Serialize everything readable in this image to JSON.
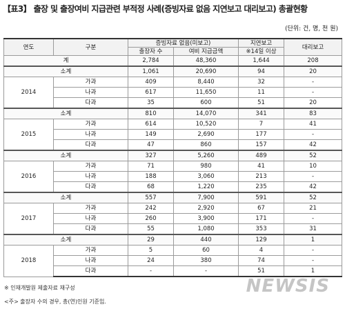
{
  "header": {
    "title": "【표3】 출장 및 출장여비 지급관련 부적정 사례(증빙자료 없음 지연보고 대리보고) 총괄현황",
    "unit": "(단위: 건, 명, 천 원)"
  },
  "table": {
    "columns": {
      "year": "연도",
      "kind": "구분",
      "group": "증빙자료 없음(미보고)",
      "people": "출장자 수",
      "amount": "여비 지급금액",
      "delay": "지연보고",
      "delay_note": "※14일 이상",
      "proxy": "대리보고"
    },
    "total": {
      "label": "계",
      "cells": [
        "2,784",
        "48,360",
        "1,644",
        "208"
      ]
    },
    "years": [
      {
        "year": "2014",
        "subtotal": {
          "label": "소계",
          "cells": [
            "1,061",
            "20,690",
            "94",
            "20"
          ]
        },
        "rows": [
          {
            "label": "가과",
            "cells": [
              "409",
              "8,440",
              "32",
              "-"
            ]
          },
          {
            "label": "나과",
            "cells": [
              "617",
              "11,650",
              "11",
              "-"
            ]
          },
          {
            "label": "다과",
            "cells": [
              "35",
              "600",
              "51",
              "20"
            ]
          }
        ]
      },
      {
        "year": "2015",
        "subtotal": {
          "label": "소계",
          "cells": [
            "810",
            "14,070",
            "341",
            "83"
          ]
        },
        "rows": [
          {
            "label": "가과",
            "cells": [
              "614",
              "10,520",
              "7",
              "41"
            ]
          },
          {
            "label": "나과",
            "cells": [
              "149",
              "2,690",
              "177",
              "-"
            ]
          },
          {
            "label": "다과",
            "cells": [
              "47",
              "860",
              "157",
              "42"
            ]
          }
        ]
      },
      {
        "year": "2016",
        "subtotal": {
          "label": "소계",
          "cells": [
            "327",
            "5,260",
            "489",
            "52"
          ]
        },
        "rows": [
          {
            "label": "가과",
            "cells": [
              "71",
              "980",
              "41",
              "10"
            ]
          },
          {
            "label": "나과",
            "cells": [
              "188",
              "3,060",
              "213",
              "-"
            ]
          },
          {
            "label": "다과",
            "cells": [
              "68",
              "1,220",
              "235",
              "42"
            ]
          }
        ]
      },
      {
        "year": "2017",
        "subtotal": {
          "label": "소계",
          "cells": [
            "557",
            "7,900",
            "591",
            "52"
          ]
        },
        "rows": [
          {
            "label": "가과",
            "cells": [
              "242",
              "2,920",
              "67",
              "21"
            ]
          },
          {
            "label": "나과",
            "cells": [
              "260",
              "3,900",
              "171",
              "-"
            ]
          },
          {
            "label": "다과",
            "cells": [
              "55",
              "1,080",
              "353",
              "31"
            ]
          }
        ]
      },
      {
        "year": "2018",
        "subtotal": {
          "label": "소계",
          "cells": [
            "29",
            "440",
            "129",
            "1"
          ]
        },
        "rows": [
          {
            "label": "가과",
            "cells": [
              "5",
              "60",
              "4",
              "-"
            ]
          },
          {
            "label": "나과",
            "cells": [
              "24",
              "380",
              "74",
              "-"
            ]
          },
          {
            "label": "다과",
            "cells": [
              "-",
              "-",
              "51",
              "1"
            ]
          }
        ]
      }
    ]
  },
  "footnotes": [
    "※ 인재개발원 제출자료 재구성",
    "<주> 출장자 수의 경우, 총(연)인원 기준임."
  ],
  "watermark": "NEWSIS"
}
